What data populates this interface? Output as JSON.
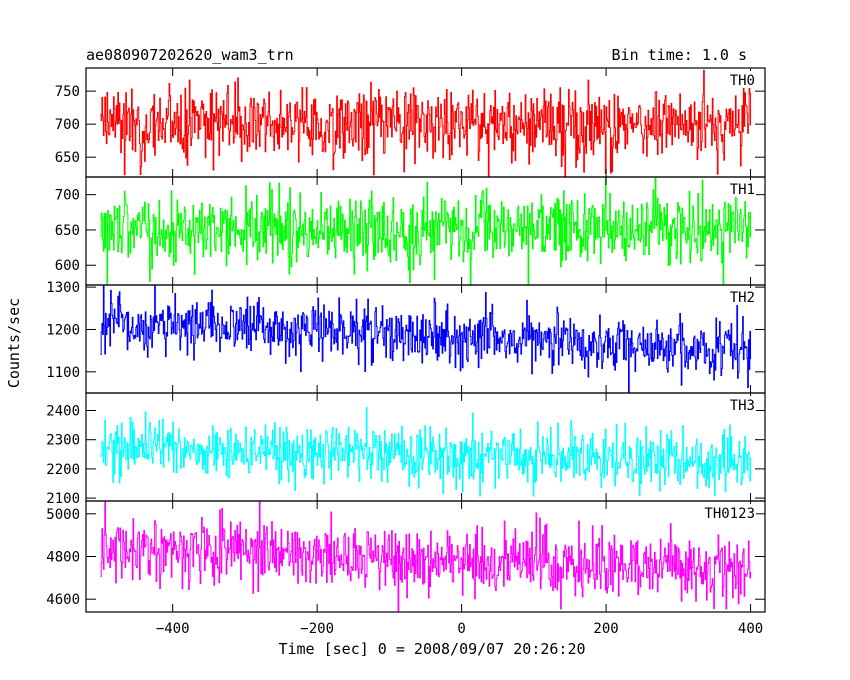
{
  "header": {
    "source_name": "ae080907202620_wam3_trn",
    "bin_time": "Bin time: 1.0 s"
  },
  "chart_data": {
    "type": "line",
    "title": "ae080907202620_wam3_trn",
    "subtitle": "Bin time: 1.0 s",
    "xlabel": "Time [sec] 0 = 2008/09/07 20:26:20",
    "ylabel": "Counts/sec",
    "xlim": [
      -520,
      420
    ],
    "x_range": [
      -500,
      400
    ],
    "x_step": 1,
    "x_ticks": [
      -400,
      -200,
      0,
      200,
      400
    ],
    "x_tick_labels": [
      "−400",
      "−200",
      "0",
      "200",
      "400"
    ],
    "grid": false,
    "legend": "none",
    "panels": [
      {
        "name": "TH0",
        "color": "#ff0000",
        "ylim": [
          620,
          785
        ],
        "y_ticks": [
          650,
          700,
          750
        ],
        "mean_start": 700,
        "mean_end": 700,
        "noise_sd": 27,
        "min": 620,
        "max": 785
      },
      {
        "name": "TH1",
        "color": "#00ff00",
        "ylim": [
          572,
          725
        ],
        "y_ticks": [
          600,
          650,
          700
        ],
        "mean_start": 652,
        "mean_end": 650,
        "noise_sd": 25,
        "min": 572,
        "max": 725
      },
      {
        "name": "TH2",
        "color": "#0000ff",
        "ylim": [
          1050,
          1305
        ],
        "y_ticks": [
          1100,
          1200,
          1300
        ],
        "mean_start": 1220,
        "mean_end": 1150,
        "noise_sd": 34,
        "min": 1050,
        "max": 1305
      },
      {
        "name": "TH3",
        "color": "#00ffff",
        "ylim": [
          2090,
          2460
        ],
        "y_ticks": [
          2100,
          2200,
          2300,
          2400
        ],
        "mean_start": 2275,
        "mean_end": 2220,
        "noise_sd": 48,
        "min": 2090,
        "max": 2460
      },
      {
        "name": "TH0123",
        "color": "#ff00ff",
        "ylim": [
          4540,
          5060
        ],
        "y_ticks": [
          4600,
          4800,
          5000
        ],
        "mean_start": 4840,
        "mean_end": 4730,
        "noise_sd": 75,
        "min": 4545,
        "max": 5060
      }
    ]
  }
}
